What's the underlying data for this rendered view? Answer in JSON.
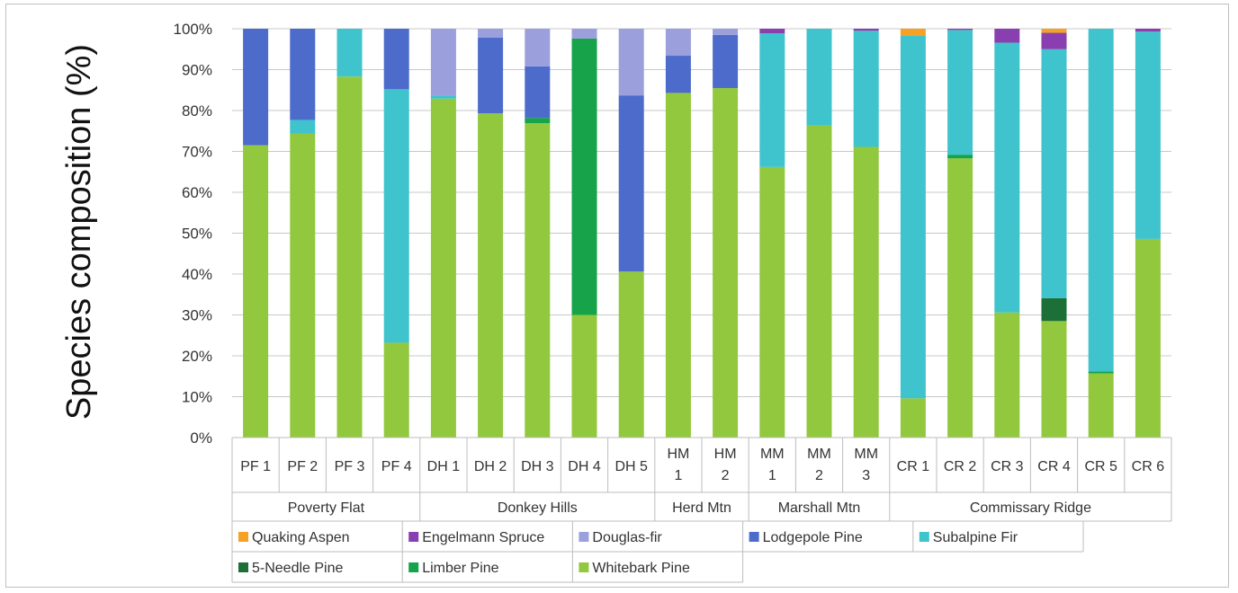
{
  "chart_data": {
    "type": "bar",
    "stacked": true,
    "ylabel": "Species composition (%)",
    "xlabel": "",
    "ylim": [
      0,
      100
    ],
    "yticks": [
      "0%",
      "10%",
      "20%",
      "30%",
      "40%",
      "50%",
      "60%",
      "70%",
      "80%",
      "90%",
      "100%"
    ],
    "grid": true,
    "legend_position": "bottom",
    "categories": [
      [
        "PF 1"
      ],
      [
        "PF 2"
      ],
      [
        "PF 3"
      ],
      [
        "PF 4"
      ],
      [
        "DH 1"
      ],
      [
        "DH 2"
      ],
      [
        "DH 3"
      ],
      [
        "DH 4"
      ],
      [
        "DH 5"
      ],
      [
        "HM",
        "1"
      ],
      [
        "HM",
        "2"
      ],
      [
        "MM",
        "1"
      ],
      [
        "MM",
        "2"
      ],
      [
        "MM",
        "3"
      ],
      [
        "CR 1"
      ],
      [
        "CR 2"
      ],
      [
        "CR 3"
      ],
      [
        "CR 4"
      ],
      [
        "CR 5"
      ],
      [
        "CR 6"
      ]
    ],
    "groups": [
      {
        "name": "Poverty Flat",
        "span": 4
      },
      {
        "name": "Donkey Hills",
        "span": 5
      },
      {
        "name": "Herd Mtn",
        "span": 2
      },
      {
        "name": "Marshall Mtn",
        "span": 3
      },
      {
        "name": "Commissary Ridge",
        "span": 6
      }
    ],
    "series": [
      {
        "name": "Whitebark Pine",
        "color": "#92c83e",
        "values": [
          71.5,
          74.3,
          88.3,
          23.2,
          82.9,
          79.3,
          76.9,
          30.0,
          40.6,
          84.3,
          85.5,
          66.2,
          76.3,
          71.1,
          9.6,
          68.3,
          30.6,
          28.5,
          15.7,
          48.6
        ]
      },
      {
        "name": "Limber Pine",
        "color": "#16a34a",
        "values": [
          0,
          0,
          0,
          0,
          0,
          0,
          1.3,
          67.6,
          0,
          0,
          0,
          0,
          0,
          0,
          0,
          0.9,
          0,
          0,
          0.5,
          0
        ]
      },
      {
        "name": "5-Needle Pine",
        "color": "#1c6f36",
        "values": [
          0,
          0,
          0,
          0,
          0,
          0,
          0,
          0,
          0,
          0,
          0,
          0,
          0,
          0,
          0,
          0,
          0,
          5.6,
          0,
          0
        ]
      },
      {
        "name": "Subalpine Fir",
        "color": "#3fc3cd",
        "values": [
          0,
          3.4,
          11.7,
          62.0,
          0.8,
          0,
          0,
          0,
          0,
          0,
          0,
          32.7,
          23.7,
          28.4,
          88.8,
          30.5,
          66.0,
          60.9,
          83.8,
          50.7
        ]
      },
      {
        "name": "Lodgepole Pine",
        "color": "#4d6bcb",
        "values": [
          28.5,
          22.3,
          0,
          14.8,
          0,
          18.5,
          12.6,
          0,
          43.1,
          9.1,
          13.0,
          0,
          0,
          0,
          0,
          0,
          0,
          0,
          0,
          0
        ]
      },
      {
        "name": "Douglas-fir",
        "color": "#9b9fdb",
        "values": [
          0,
          0,
          0,
          0,
          16.3,
          2.2,
          9.2,
          2.4,
          16.3,
          6.6,
          1.5,
          0,
          0,
          0,
          0,
          0,
          0,
          0,
          0,
          0
        ]
      },
      {
        "name": "Engelmann Spruce",
        "color": "#8a3fb0",
        "values": [
          0,
          0,
          0,
          0,
          0,
          0,
          0,
          0,
          0,
          0,
          0,
          1.1,
          0,
          0.5,
          0,
          0.3,
          3.4,
          4.0,
          0,
          0.7
        ]
      },
      {
        "name": "Quaking Aspen",
        "color": "#f5a124",
        "values": [
          0,
          0,
          0,
          0,
          0,
          0,
          0,
          0,
          0,
          0,
          0,
          0,
          0,
          0,
          1.6,
          0,
          0,
          1.0,
          0,
          0
        ]
      }
    ],
    "legend": [
      [
        "Quaking Aspen",
        "Engelmann Spruce",
        "Douglas-fir",
        "Lodgepole Pine",
        "Subalpine Fir"
      ],
      [
        "5-Needle Pine",
        "Limber Pine",
        "Whitebark Pine"
      ]
    ]
  }
}
